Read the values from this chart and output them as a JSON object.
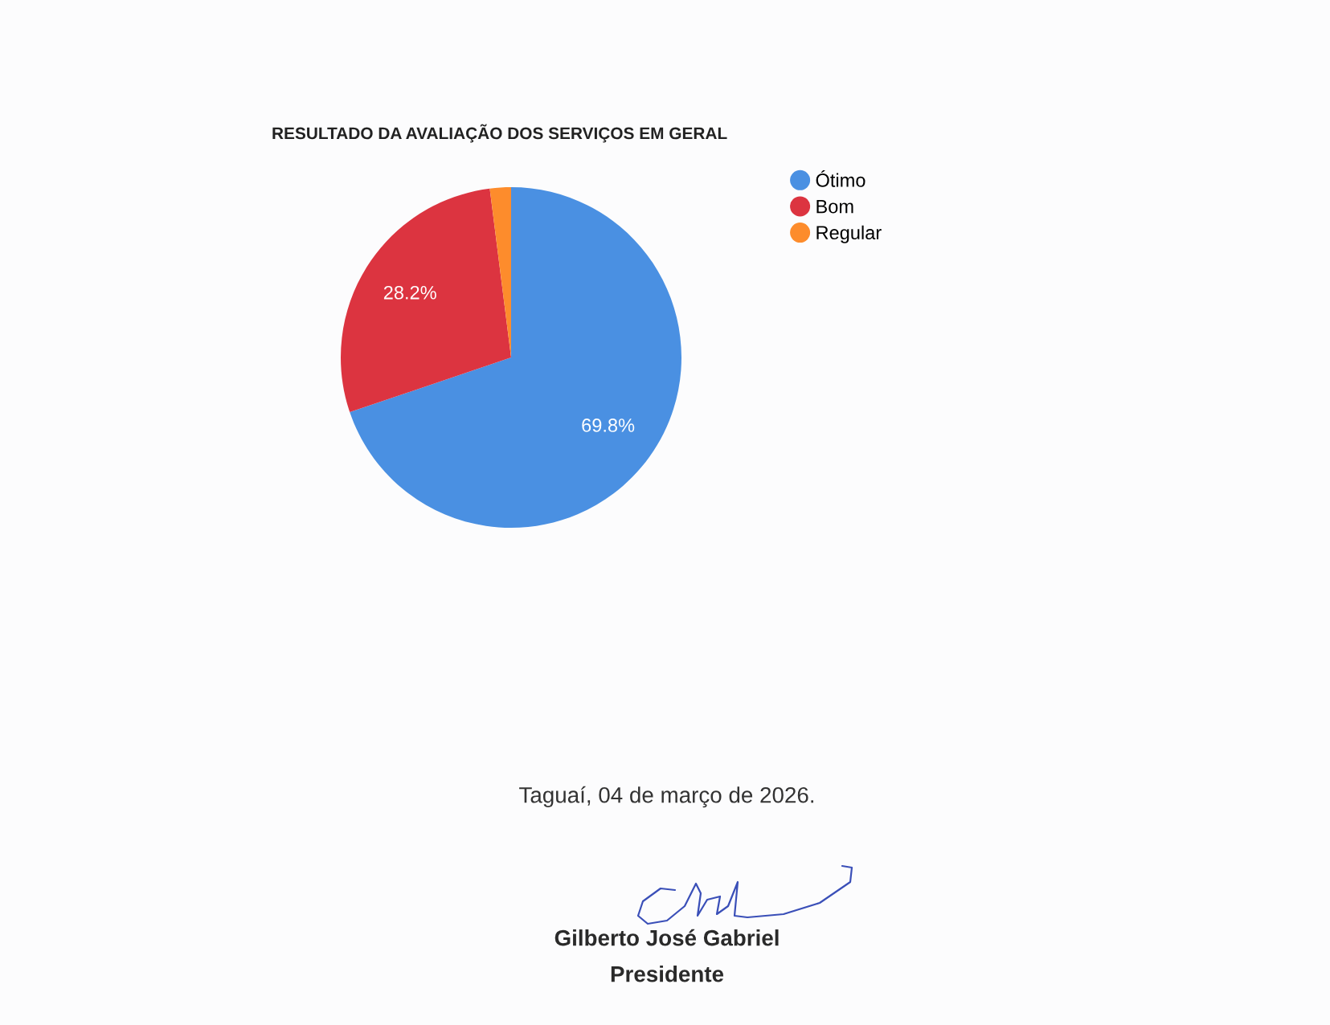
{
  "chart_data": {
    "type": "pie",
    "title": "RESULTADO DA AVALIAÇÃO DOS SERVIÇOS EM GERAL",
    "categories": [
      "Ótimo",
      "Bom",
      "Regular"
    ],
    "values": [
      69.8,
      28.2,
      2.0
    ],
    "colors": [
      "#4a90e2",
      "#dc3440",
      "#fd8c2c"
    ],
    "value_labels": [
      "69.8%",
      "28.2%",
      null
    ],
    "legend": "top right",
    "annotations": [
      "Taguaí, 04 de março de 2026.",
      "Gilberto José Gabriel",
      "Presidente"
    ]
  }
}
